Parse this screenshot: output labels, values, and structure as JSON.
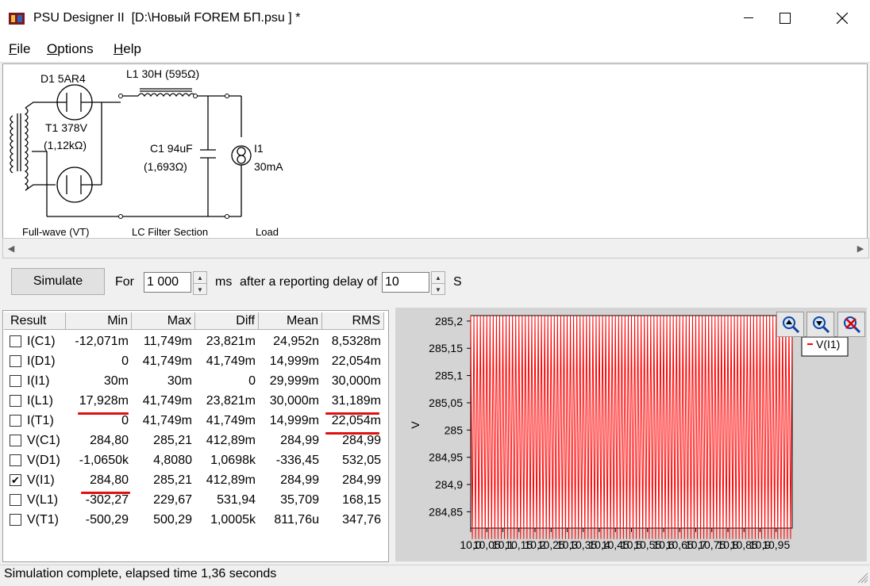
{
  "window": {
    "title": "PSU Designer II  [D:\\Новый FOREM БП.psu ] *",
    "menu": [
      {
        "label": "File",
        "accel": "F",
        "rest": "ile"
      },
      {
        "label": "Options",
        "accel": "O",
        "rest": "ptions"
      },
      {
        "label": "Help",
        "accel": "H",
        "rest": "elp"
      }
    ]
  },
  "schematic": {
    "rectifier": {
      "name": "D1 5AR4",
      "section": "Full-wave (VT)"
    },
    "transformer": {
      "name": "T1 378V",
      "resistance": "(1,12kΩ)"
    },
    "inductor": {
      "name": "L1 30H (595Ω)"
    },
    "capacitor": {
      "name": "C1 94uF",
      "resistance": "(1,693Ω)"
    },
    "filter_section": "LC Filter Section",
    "load": {
      "name": "I1",
      "value": "30mA",
      "section": "Load"
    }
  },
  "controls": {
    "simulate_label": "Simulate",
    "for_label": "For",
    "duration_value": "1 000",
    "duration_unit": "ms",
    "delay_label": "after a reporting delay of",
    "delay_value": "10",
    "delay_unit": "S"
  },
  "results": {
    "columns": [
      "Result",
      "Min",
      "Max",
      "Diff",
      "Mean",
      "RMS"
    ],
    "rows": [
      {
        "name": "I(C1)",
        "checked": false,
        "min": "-12,071m",
        "max": "11,749m",
        "diff": "23,821m",
        "mean": "24,952n",
        "rms": "8,5328m"
      },
      {
        "name": "I(D1)",
        "checked": false,
        "min": "0",
        "max": "41,749m",
        "diff": "41,749m",
        "mean": "14,999m",
        "rms": "22,054m"
      },
      {
        "name": "I(I1)",
        "checked": false,
        "min": "30m",
        "max": "30m",
        "diff": "0",
        "mean": "29,999m",
        "rms": "30,000m"
      },
      {
        "name": "I(L1)",
        "checked": false,
        "min": "17,928m",
        "max": "41,749m",
        "diff": "23,821m",
        "mean": "30,000m",
        "rms": "31,189m"
      },
      {
        "name": "I(T1)",
        "checked": false,
        "min": "0",
        "max": "41,749m",
        "diff": "41,749m",
        "mean": "14,999m",
        "rms": "22,054m"
      },
      {
        "name": "V(C1)",
        "checked": false,
        "min": "284,80",
        "max": "285,21",
        "diff": "412,89m",
        "mean": "284,99",
        "rms": "284,99"
      },
      {
        "name": "V(D1)",
        "checked": false,
        "min": "-1,0650k",
        "max": "4,8080",
        "diff": "1,0698k",
        "mean": "-336,45",
        "rms": "532,05"
      },
      {
        "name": "V(I1)",
        "checked": true,
        "min": "284,80",
        "max": "285,21",
        "diff": "412,89m",
        "mean": "284,99",
        "rms": "284,99"
      },
      {
        "name": "V(L1)",
        "checked": false,
        "min": "-302,27",
        "max": "229,67",
        "diff": "531,94",
        "mean": "35,709",
        "rms": "168,15"
      },
      {
        "name": "V(T1)",
        "checked": false,
        "min": "-500,29",
        "max": "500,29",
        "diff": "1,0005k",
        "mean": "811,76u",
        "rms": "347,76"
      }
    ]
  },
  "chart_data": {
    "type": "line",
    "ylabel": "V",
    "ylim": [
      284.82,
      285.21
    ],
    "yticks": [
      "285,2",
      "285,15",
      "285,1",
      "285,05",
      "285",
      "284,95",
      "284,9",
      "284,85"
    ],
    "xticks": [
      "10,0",
      "10,05",
      "10,1",
      "10,15",
      "10,2",
      "10,25",
      "10,3",
      "10,35",
      "10,4",
      "10,45",
      "10,5",
      "10,55",
      "10,6",
      "10,65",
      "10,7",
      "10,75",
      "10,8",
      "10,85",
      "10,9",
      "10,95"
    ],
    "xlim": [
      10.0,
      11.0
    ],
    "series": [
      {
        "name": "V(I1)",
        "color": "#ff0000",
        "min": 284.8,
        "max": 285.21
      }
    ],
    "legend": "top-right",
    "background": "#ffffff"
  },
  "zoom_icons": [
    "zoom-in-icon",
    "zoom-out-icon",
    "zoom-reset-icon"
  ],
  "status": {
    "text": "Simulation complete, elapsed time 1,36 seconds"
  }
}
